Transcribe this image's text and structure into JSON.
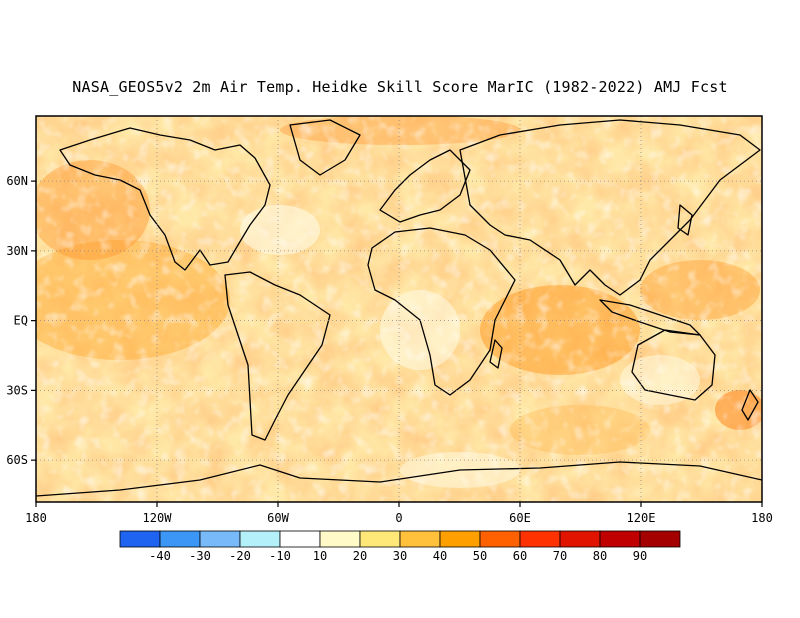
{
  "title": "NASA_GEOS5v2 2m Air Temp. Heidke Skill Score MarIC (1982-2022) AMJ Fcst",
  "map": {
    "lon_range": [
      -180,
      180
    ],
    "lat_range": [
      -78,
      88
    ],
    "lon_ticks": [
      {
        "value": -180,
        "label": "180"
      },
      {
        "value": -120,
        "label": "120W"
      },
      {
        "value": -60,
        "label": "60W"
      },
      {
        "value": 0,
        "label": "0"
      },
      {
        "value": 60,
        "label": "60E"
      },
      {
        "value": 120,
        "label": "120E"
      },
      {
        "value": 180,
        "label": "180"
      }
    ],
    "lat_ticks": [
      {
        "value": 60,
        "label": "60N"
      },
      {
        "value": 30,
        "label": "30N"
      },
      {
        "value": 0,
        "label": "EQ"
      },
      {
        "value": -30,
        "label": "30S"
      },
      {
        "value": -60,
        "label": "60S"
      }
    ],
    "gridlines": "dotted"
  },
  "colorbar": {
    "colors": [
      "#1e64f0",
      "#3c96f5",
      "#78b9fa",
      "#b4f0fa",
      "#ffffff",
      "#fffac8",
      "#ffe878",
      "#ffc03c",
      "#ffa000",
      "#ff6000",
      "#ff3200",
      "#e11400",
      "#c00000",
      "#a50000"
    ],
    "labels": [
      "-40",
      "-30",
      "-20",
      "-10",
      "10",
      "20",
      "30",
      "40",
      "50",
      "60",
      "70",
      "80",
      "90"
    ]
  }
}
